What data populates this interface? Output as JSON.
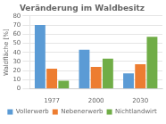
{
  "chart_data": {
    "type": "bar",
    "title": "Veränderung im Waldbesitz",
    "y_label": "Waldfläche [%]",
    "categories": [
      "1977",
      "2000",
      "2030"
    ],
    "series": [
      {
        "name": "Vollerwerb",
        "color": "#5b9bd5",
        "values": [
          70,
          43,
          17
        ]
      },
      {
        "name": "Nebenerwerb",
        "color": "#ed7d31",
        "values": [
          22,
          24,
          27
        ]
      },
      {
        "name": "Nichtlandwirt",
        "color": "#70ad47",
        "values": [
          9,
          33,
          57
        ]
      }
    ],
    "ylim": [
      0,
      80
    ],
    "yticks": [
      0,
      10,
      20,
      30,
      40,
      50,
      60,
      70,
      80
    ],
    "grid": true,
    "legend": "bottom"
  }
}
